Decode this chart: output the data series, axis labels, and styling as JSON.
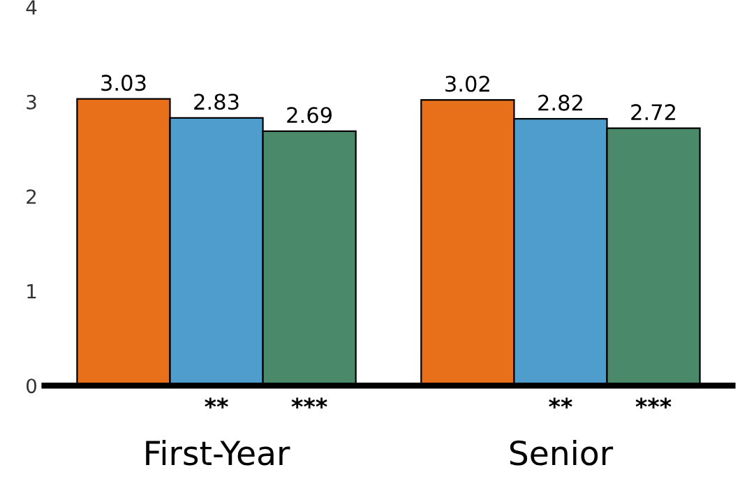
{
  "chart_data": {
    "type": "bar",
    "categories": [
      "First-Year",
      "Senior"
    ],
    "series": [
      {
        "color": "#e8701a",
        "values": [
          3.03,
          3.02
        ]
      },
      {
        "color": "#4e9dcc",
        "values": [
          2.83,
          2.82
        ]
      },
      {
        "color": "#4a8a6a",
        "values": [
          2.69,
          2.72
        ]
      }
    ],
    "ylim": [
      0,
      4
    ],
    "yticks": [
      0,
      1,
      2,
      3,
      4
    ],
    "grid": false,
    "data_labels": true,
    "annotations": [
      "**",
      "***",
      "**",
      "***"
    ]
  }
}
